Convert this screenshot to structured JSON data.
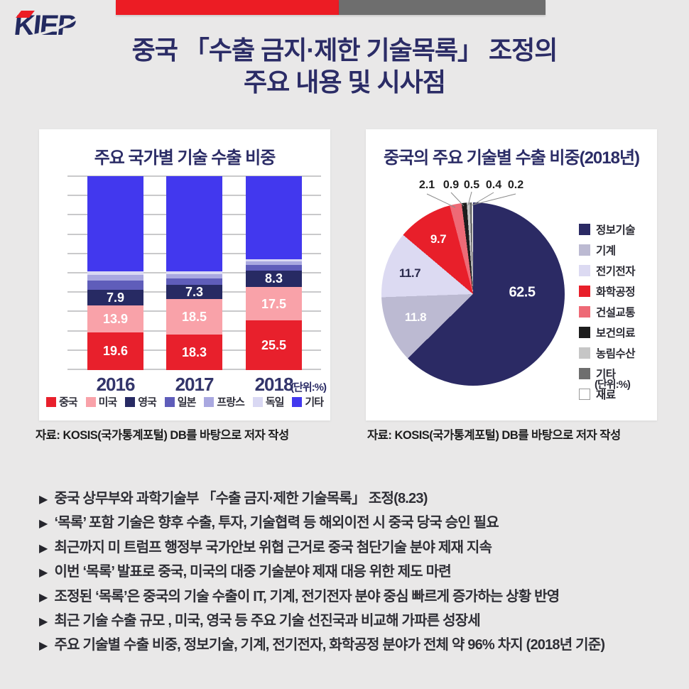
{
  "logo": {
    "text": "KIEP"
  },
  "header": {
    "title_line1": "중국 「수출 금지·제한 기술목록」 조정의",
    "title_line2": "주요 내용 및 시사점"
  },
  "colors": {
    "page_bg": "#e9e8e8",
    "accent_red": "#ec1c24",
    "accent_gray": "#6e6e6e",
    "title_navy": "#2b2c66"
  },
  "bar_panel": {
    "title": "주요 국가별 기술 수출 비중",
    "unit_label": "(단위:%)",
    "source": "자료: KOSIS(국가통계포털) DB를 바탕으로 저자 작성"
  },
  "pie_panel": {
    "title": "중국의 주요 기술별 수출 비중(2018년)",
    "unit_label": "(단위:%)",
    "source": "자료: KOSIS(국가통계포털) DB를 바탕으로 저자 작성"
  },
  "chart_data": [
    {
      "type": "bar",
      "stacked": true,
      "title": "주요 국가별 기술 수출 비중",
      "categories": [
        "2016",
        "2017",
        "2018"
      ],
      "unit": "%",
      "ylim": [
        0,
        100
      ],
      "gridlines_every": 10,
      "legend_position": "bottom",
      "series": [
        {
          "name": "중국",
          "color": "#e8202c",
          "values": [
            19.6,
            18.3,
            25.5
          ],
          "labeled": true
        },
        {
          "name": "미국",
          "color": "#f9a2a9",
          "values": [
            13.9,
            18.5,
            17.5
          ],
          "labeled": true
        },
        {
          "name": "영국",
          "color": "#272a63",
          "values": [
            7.9,
            7.3,
            8.3
          ],
          "labeled": true
        },
        {
          "name": "일본",
          "color": "#5f5dba",
          "values": [
            4.6,
            3.2,
            3.0
          ],
          "labeled": false
        },
        {
          "name": "프랑스",
          "color": "#a9a8e0",
          "values": [
            3.2,
            2.2,
            1.8
          ],
          "labeled": false
        },
        {
          "name": "독일",
          "color": "#d9d8f3",
          "values": [
            1.9,
            1.3,
            1.0
          ],
          "labeled": false
        },
        {
          "name": "기타",
          "color": "#4238ee",
          "values": [
            48.9,
            49.2,
            42.9
          ],
          "labeled": false
        }
      ],
      "note": "values for 일본/프랑스/독일/기타 are unlabeled in the figure and estimated from segment heights"
    },
    {
      "type": "pie",
      "title": "중국의 주요 기술별 수출 비중(2018년)",
      "unit": "%",
      "start_angle_deg": 0,
      "direction": "clockwise",
      "legend_position": "right",
      "slices": [
        {
          "name": "정보기술",
          "value": 62.5,
          "color": "#2b2a64",
          "label_pos": "inside",
          "label_color": "#ffffff"
        },
        {
          "name": "기계",
          "value": 11.8,
          "color": "#bcbad2",
          "label_pos": "inside",
          "label_color": "#ffffff"
        },
        {
          "name": "전기전자",
          "value": 11.7,
          "color": "#dcdaf2",
          "label_pos": "inside",
          "label_color": "#2b2b4d"
        },
        {
          "name": "화학공정",
          "value": 9.7,
          "color": "#e81f2a",
          "label_pos": "inside",
          "label_color": "#ffffff"
        },
        {
          "name": "건설교통",
          "value": 2.1,
          "color": "#ee6a76",
          "label_pos": "outside",
          "label_color": "#1e1e1e"
        },
        {
          "name": "보건의료",
          "value": 0.9,
          "color": "#1d1d1d",
          "label_pos": "outside",
          "label_color": "#1e1e1e"
        },
        {
          "name": "농림수산",
          "value": 0.5,
          "color": "#c6c6c6",
          "label_pos": "outside",
          "label_color": "#1e1e1e"
        },
        {
          "name": "기타",
          "value": 0.4,
          "color": "#6e6e6e",
          "label_pos": "outside",
          "label_color": "#1e1e1e"
        },
        {
          "name": "재료",
          "value": 0.2,
          "color": "#ffffff",
          "label_pos": "outside",
          "label_color": "#1e1e1e"
        }
      ]
    }
  ],
  "bullets": [
    "중국 상무부와 과학기술부 「수출 금지·제한 기술목록」 조정(8.23)",
    "‘목록’ 포함 기술은 향후 수출, 투자, 기술협력 등 해외이전 시 중국 당국 승인 필요",
    "최근까지 미 트럼프 행정부 국가안보 위협 근거로 중국 첨단기술 분야 제재 지속",
    "이번 ‘목록’ 발표로 중국, 미국의 대중 기술분야 제재 대응 위한 제도 마련",
    "조정된 ‘목록’은 중국의 기술 수출이 IT, 기계, 전기전자 분야 중심 빠르게 증가하는 상황 반영",
    "최근 기술 수출 규모 , 미국, 영국 등 주요 기술 선진국과 비교해 가파른 성장세",
    "주요 기술별 수출 비중, 정보기술, 기계, 전기전자, 화학공정 분야가 전체 약 96% 차지 (2018년 기준)"
  ],
  "bullet_marker": "▶"
}
